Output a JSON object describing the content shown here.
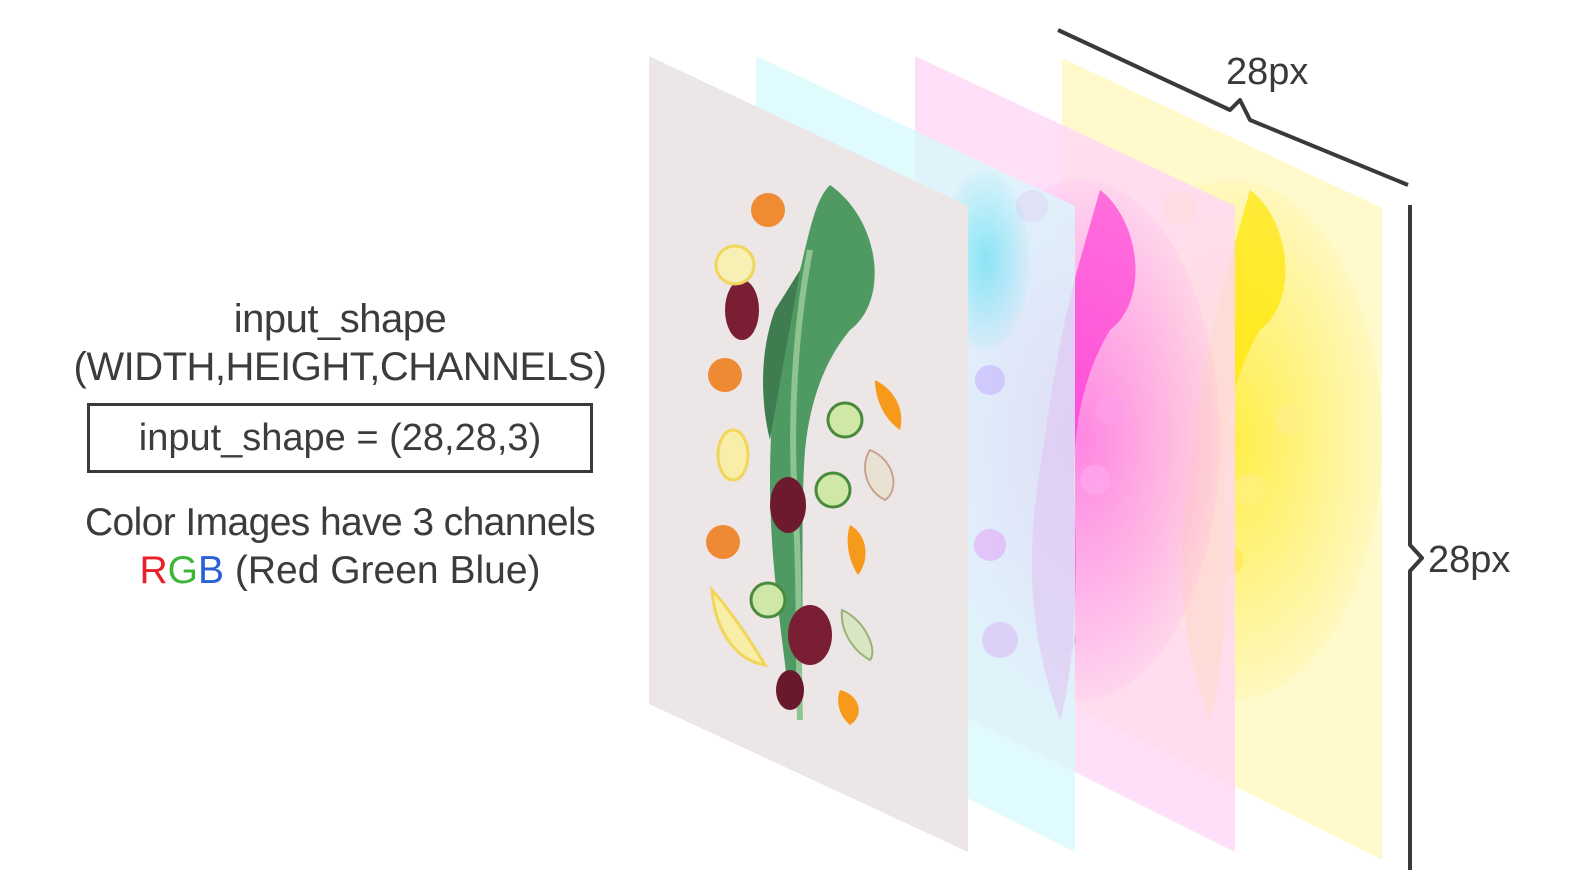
{
  "left": {
    "title": "input_shape",
    "subtitle": "(WIDTH,HEIGHT,CHANNELS)",
    "shape_expression": "input_shape = (28,28,3)",
    "description": "Color Images have 3 channels",
    "rgb_r": "R",
    "rgb_g": "G",
    "rgb_b": "B",
    "rgb_rest": " (Red Green Blue)"
  },
  "dimensions": {
    "width_label": "28px",
    "height_label": "28px"
  },
  "channels": [
    {
      "name": "yellow-channel",
      "color": "#fff9c4"
    },
    {
      "name": "magenta-channel",
      "color": "#ffd6f7"
    },
    {
      "name": "cyan-channel",
      "color": "#d4f9fb"
    },
    {
      "name": "original-image",
      "color": "#ece6e7"
    }
  ],
  "colors": {
    "text": "#3a3a3a",
    "red": "#e8202a",
    "green": "#3fb63a",
    "blue": "#2a5fd8"
  }
}
